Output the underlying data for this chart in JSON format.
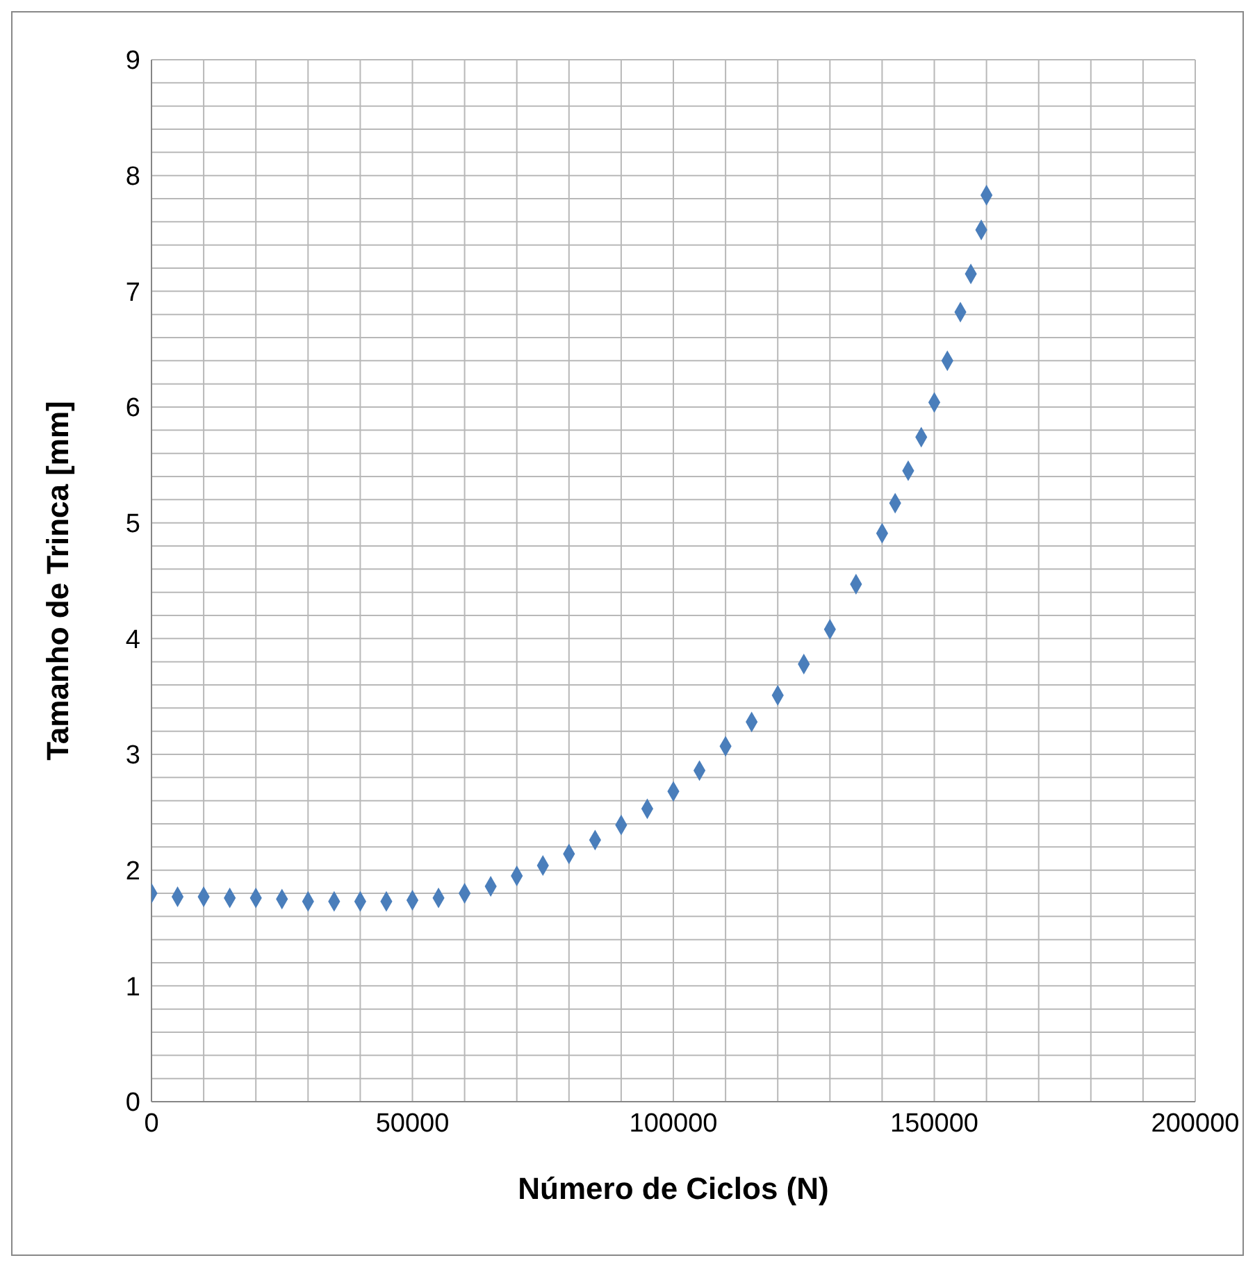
{
  "chart_data": {
    "type": "scatter",
    "xlabel": "Número de Ciclos (N)",
    "ylabel": "Tamanho de Trinca [mm]",
    "x": [
      0,
      5000,
      10000,
      15000,
      20000,
      25000,
      30000,
      35000,
      40000,
      45000,
      50000,
      55000,
      60000,
      65000,
      70000,
      75000,
      80000,
      85000,
      90000,
      95000,
      100000,
      105000,
      110000,
      115000,
      120000,
      125000,
      130000,
      135000,
      140000,
      142500,
      145000,
      147500,
      150000,
      152500,
      155000,
      157000,
      159000,
      160000
    ],
    "series": [
      {
        "color": "#4a7ebb",
        "values": [
          1.8,
          1.77,
          1.77,
          1.76,
          1.76,
          1.75,
          1.73,
          1.73,
          1.73,
          1.73,
          1.74,
          1.76,
          1.8,
          1.86,
          1.95,
          2.04,
          2.14,
          2.26,
          2.39,
          2.53,
          2.68,
          2.86,
          3.07,
          3.28,
          3.51,
          3.78,
          4.08,
          4.47,
          4.91,
          5.17,
          5.45,
          5.74,
          6.04,
          6.4,
          6.82,
          7.15,
          7.53,
          7.83
        ]
      }
    ],
    "xlim": [
      0,
      200000
    ],
    "xticks": [
      0,
      {
        "value": 10000,
        "label": null
      },
      {
        "value": 20000,
        "label": null
      },
      {
        "value": 30000,
        "label": null
      },
      {
        "value": 40000,
        "label": null
      },
      50000,
      {
        "value": 60000,
        "label": null
      },
      {
        "value": 70000,
        "label": null
      },
      {
        "value": 80000,
        "label": null
      },
      {
        "value": 90000,
        "label": null
      },
      100000,
      {
        "value": 110000,
        "label": null
      },
      {
        "value": 120000,
        "label": null
      },
      {
        "value": 130000,
        "label": null
      },
      {
        "value": 140000,
        "label": null
      },
      150000,
      {
        "value": 160000,
        "label": null
      },
      {
        "value": 170000,
        "label": null
      },
      {
        "value": 180000,
        "label": null
      },
      {
        "value": 190000,
        "label": null
      },
      200000
    ],
    "ylim": [
      0,
      9
    ],
    "yticks": [
      0,
      {
        "value": 0.2,
        "label": null
      },
      {
        "value": 0.4,
        "label": null
      },
      {
        "value": 0.6,
        "label": null
      },
      {
        "value": 0.8,
        "label": null
      },
      1,
      {
        "value": 1.2,
        "label": null
      },
      {
        "value": 1.4,
        "label": null
      },
      {
        "value": 1.6,
        "label": null
      },
      {
        "value": 1.8,
        "label": null
      },
      2,
      {
        "value": 2.2,
        "label": null
      },
      {
        "value": 2.4,
        "label": null
      },
      {
        "value": 2.6,
        "label": null
      },
      {
        "value": 2.8,
        "label": null
      },
      3,
      {
        "value": 3.2,
        "label": null
      },
      {
        "value": 3.4,
        "label": null
      },
      {
        "value": 3.6,
        "label": null
      },
      {
        "value": 3.8,
        "label": null
      },
      4,
      {
        "value": 4.2,
        "label": null
      },
      {
        "value": 4.4,
        "label": null
      },
      {
        "value": 4.6,
        "label": null
      },
      {
        "value": 4.8,
        "label": null
      },
      5,
      {
        "value": 5.2,
        "label": null
      },
      {
        "value": 5.4,
        "label": null
      },
      {
        "value": 5.6,
        "label": null
      },
      {
        "value": 5.8,
        "label": null
      },
      6,
      {
        "value": 6.2,
        "label": null
      },
      {
        "value": 6.4,
        "label": null
      },
      {
        "value": 6.6,
        "label": null
      },
      {
        "value": 6.8,
        "label": null
      },
      7,
      {
        "value": 7.2,
        "label": null
      },
      {
        "value": 7.4,
        "label": null
      },
      {
        "value": 7.6,
        "label": null
      },
      {
        "value": 7.8,
        "label": null
      },
      8,
      {
        "value": 8.2,
        "label": null
      },
      {
        "value": 8.4,
        "label": null
      },
      {
        "value": 8.6,
        "label": null
      },
      {
        "value": 8.8,
        "label": null
      },
      9
    ],
    "grid": true,
    "marker": "diamond",
    "legend": false
  }
}
